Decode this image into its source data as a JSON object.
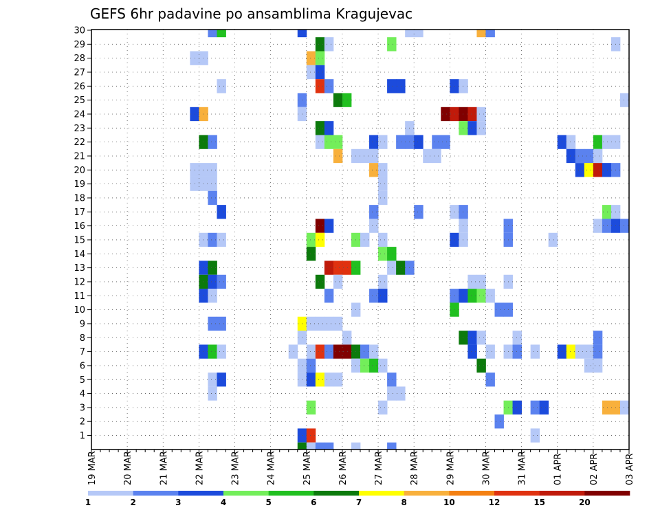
{
  "chart_data": {
    "type": "heatmap",
    "title": "GEFS 6hr padavine po ansamblima Kragujevac",
    "y_categories": [
      "1",
      "2",
      "3",
      "4",
      "5",
      "6",
      "7",
      "8",
      "9",
      "10",
      "11",
      "12",
      "13",
      "14",
      "15",
      "16",
      "17",
      "18",
      "19",
      "20",
      "21",
      "22",
      "23",
      "24",
      "25",
      "26",
      "27",
      "28",
      "29",
      "30"
    ],
    "x_tick_labels": [
      "19 MAR",
      "20 MAR",
      "21 MAR",
      "22 MAR",
      "23 MAR",
      "24 MAR",
      "25 MAR",
      "26 MAR",
      "27 MAR",
      "28 MAR",
      "29 MAR",
      "30 MAR",
      "31 MAR",
      "01 APR",
      "02 APR",
      "03 APR"
    ],
    "x_range": [
      0,
      60
    ],
    "x_unit": "6-hour steps since 19 MAR 00z",
    "grid": true,
    "colorbar": {
      "labels": [
        "1",
        "2",
        "3",
        "4",
        "5",
        "6",
        "7",
        "8",
        "10",
        "12",
        "15",
        "20"
      ],
      "colors": [
        "#b5c8f7",
        "#5b82ef",
        "#1c4bdc",
        "#73ee5a",
        "#21c020",
        "#0c7a0c",
        "#ffff00",
        "#f8b03c",
        "#f48012",
        "#e03210",
        "#c01a0a",
        "#800000"
      ]
    },
    "cells": [
      {
        "x": 13,
        "y": 30,
        "v": 2
      },
      {
        "x": 14,
        "y": 30,
        "v": 5
      },
      {
        "x": 23,
        "y": 30,
        "v": 3
      },
      {
        "x": 35,
        "y": 30,
        "v": 1
      },
      {
        "x": 36,
        "y": 30,
        "v": 1
      },
      {
        "x": 43,
        "y": 30,
        "v": 8
      },
      {
        "x": 44,
        "y": 30,
        "v": 2
      },
      {
        "x": 25,
        "y": 29,
        "v": 6
      },
      {
        "x": 26,
        "y": 29,
        "v": 1
      },
      {
        "x": 33,
        "y": 29,
        "v": 4
      },
      {
        "x": 58,
        "y": 29,
        "v": 1
      },
      {
        "x": 11,
        "y": 28,
        "v": 1
      },
      {
        "x": 12,
        "y": 28,
        "v": 1
      },
      {
        "x": 24,
        "y": 28,
        "v": 8
      },
      {
        "x": 25,
        "y": 28,
        "v": 4
      },
      {
        "x": 24,
        "y": 27,
        "v": 1
      },
      {
        "x": 25,
        "y": 27,
        "v": 3
      },
      {
        "x": 14,
        "y": 26,
        "v": 1
      },
      {
        "x": 25,
        "y": 26,
        "v": 12
      },
      {
        "x": 26,
        "y": 26,
        "v": 2
      },
      {
        "x": 33,
        "y": 26,
        "v": 3
      },
      {
        "x": 34,
        "y": 26,
        "v": 3
      },
      {
        "x": 40,
        "y": 26,
        "v": 3
      },
      {
        "x": 41,
        "y": 26,
        "v": 1
      },
      {
        "x": 23,
        "y": 25,
        "v": 2
      },
      {
        "x": 27,
        "y": 25,
        "v": 6
      },
      {
        "x": 28,
        "y": 25,
        "v": 5
      },
      {
        "x": 59,
        "y": 25,
        "v": 1
      },
      {
        "x": 11,
        "y": 24,
        "v": 3
      },
      {
        "x": 12,
        "y": 24,
        "v": 8
      },
      {
        "x": 23,
        "y": 24,
        "v": 1
      },
      {
        "x": 39,
        "y": 24,
        "v": 20
      },
      {
        "x": 40,
        "y": 24,
        "v": 15
      },
      {
        "x": 41,
        "y": 24,
        "v": 20
      },
      {
        "x": 42,
        "y": 24,
        "v": 15
      },
      {
        "x": 43,
        "y": 24,
        "v": 1
      },
      {
        "x": 25,
        "y": 23,
        "v": 6
      },
      {
        "x": 26,
        "y": 23,
        "v": 3
      },
      {
        "x": 35,
        "y": 23,
        "v": 1
      },
      {
        "x": 41,
        "y": 23,
        "v": 4
      },
      {
        "x": 42,
        "y": 23,
        "v": 3
      },
      {
        "x": 43,
        "y": 23,
        "v": 1
      },
      {
        "x": 12,
        "y": 22,
        "v": 6
      },
      {
        "x": 13,
        "y": 22,
        "v": 2
      },
      {
        "x": 25,
        "y": 22,
        "v": 1
      },
      {
        "x": 26,
        "y": 22,
        "v": 4
      },
      {
        "x": 27,
        "y": 22,
        "v": 4
      },
      {
        "x": 31,
        "y": 22,
        "v": 3
      },
      {
        "x": 32,
        "y": 22,
        "v": 1
      },
      {
        "x": 34,
        "y": 22,
        "v": 2
      },
      {
        "x": 35,
        "y": 22,
        "v": 2
      },
      {
        "x": 36,
        "y": 22,
        "v": 3
      },
      {
        "x": 38,
        "y": 22,
        "v": 2
      },
      {
        "x": 39,
        "y": 22,
        "v": 2
      },
      {
        "x": 52,
        "y": 22,
        "v": 3
      },
      {
        "x": 53,
        "y": 22,
        "v": 1
      },
      {
        "x": 56,
        "y": 22,
        "v": 5
      },
      {
        "x": 57,
        "y": 22,
        "v": 1
      },
      {
        "x": 58,
        "y": 22,
        "v": 1
      },
      {
        "x": 27,
        "y": 21,
        "v": 8
      },
      {
        "x": 29,
        "y": 21,
        "v": 1
      },
      {
        "x": 30,
        "y": 21,
        "v": 1
      },
      {
        "x": 31,
        "y": 21,
        "v": 1
      },
      {
        "x": 37,
        "y": 21,
        "v": 1
      },
      {
        "x": 38,
        "y": 21,
        "v": 1
      },
      {
        "x": 53,
        "y": 21,
        "v": 3
      },
      {
        "x": 54,
        "y": 21,
        "v": 2
      },
      {
        "x": 55,
        "y": 21,
        "v": 2
      },
      {
        "x": 56,
        "y": 21,
        "v": 1
      },
      {
        "x": 11,
        "y": 20,
        "v": 1
      },
      {
        "x": 12,
        "y": 20,
        "v": 1
      },
      {
        "x": 13,
        "y": 20,
        "v": 1
      },
      {
        "x": 31,
        "y": 20,
        "v": 8
      },
      {
        "x": 32,
        "y": 20,
        "v": 1
      },
      {
        "x": 54,
        "y": 20,
        "v": 3
      },
      {
        "x": 55,
        "y": 20,
        "v": 7
      },
      {
        "x": 56,
        "y": 20,
        "v": 15
      },
      {
        "x": 57,
        "y": 20,
        "v": 3
      },
      {
        "x": 58,
        "y": 20,
        "v": 2
      },
      {
        "x": 11,
        "y": 19,
        "v": 1
      },
      {
        "x": 12,
        "y": 19,
        "v": 1
      },
      {
        "x": 13,
        "y": 19,
        "v": 1
      },
      {
        "x": 32,
        "y": 19,
        "v": 1
      },
      {
        "x": 13,
        "y": 18,
        "v": 2
      },
      {
        "x": 32,
        "y": 18,
        "v": 1
      },
      {
        "x": 14,
        "y": 17,
        "v": 3
      },
      {
        "x": 31,
        "y": 17,
        "v": 2
      },
      {
        "x": 36,
        "y": 17,
        "v": 2
      },
      {
        "x": 40,
        "y": 17,
        "v": 1
      },
      {
        "x": 41,
        "y": 17,
        "v": 2
      },
      {
        "x": 57,
        "y": 17,
        "v": 4
      },
      {
        "x": 58,
        "y": 17,
        "v": 1
      },
      {
        "x": 25,
        "y": 16,
        "v": 20
      },
      {
        "x": 26,
        "y": 16,
        "v": 3
      },
      {
        "x": 31,
        "y": 16,
        "v": 1
      },
      {
        "x": 41,
        "y": 16,
        "v": 1
      },
      {
        "x": 46,
        "y": 16,
        "v": 2
      },
      {
        "x": 56,
        "y": 16,
        "v": 1
      },
      {
        "x": 57,
        "y": 16,
        "v": 2
      },
      {
        "x": 58,
        "y": 16,
        "v": 3
      },
      {
        "x": 59,
        "y": 16,
        "v": 2
      },
      {
        "x": 12,
        "y": 15,
        "v": 1
      },
      {
        "x": 13,
        "y": 15,
        "v": 2
      },
      {
        "x": 14,
        "y": 15,
        "v": 1
      },
      {
        "x": 24,
        "y": 15,
        "v": 4
      },
      {
        "x": 25,
        "y": 15,
        "v": 7
      },
      {
        "x": 29,
        "y": 15,
        "v": 4
      },
      {
        "x": 30,
        "y": 15,
        "v": 1
      },
      {
        "x": 32,
        "y": 15,
        "v": 1
      },
      {
        "x": 40,
        "y": 15,
        "v": 3
      },
      {
        "x": 41,
        "y": 15,
        "v": 1
      },
      {
        "x": 46,
        "y": 15,
        "v": 2
      },
      {
        "x": 51,
        "y": 15,
        "v": 1
      },
      {
        "x": 24,
        "y": 14,
        "v": 6
      },
      {
        "x": 32,
        "y": 14,
        "v": 4
      },
      {
        "x": 33,
        "y": 14,
        "v": 5
      },
      {
        "x": 12,
        "y": 13,
        "v": 3
      },
      {
        "x": 13,
        "y": 13,
        "v": 6
      },
      {
        "x": 26,
        "y": 13,
        "v": 15
      },
      {
        "x": 27,
        "y": 13,
        "v": 12
      },
      {
        "x": 28,
        "y": 13,
        "v": 12
      },
      {
        "x": 29,
        "y": 13,
        "v": 5
      },
      {
        "x": 33,
        "y": 13,
        "v": 1
      },
      {
        "x": 34,
        "y": 13,
        "v": 6
      },
      {
        "x": 35,
        "y": 13,
        "v": 2
      },
      {
        "x": 12,
        "y": 12,
        "v": 6
      },
      {
        "x": 13,
        "y": 12,
        "v": 3
      },
      {
        "x": 14,
        "y": 12,
        "v": 2
      },
      {
        "x": 25,
        "y": 12,
        "v": 6
      },
      {
        "x": 27,
        "y": 12,
        "v": 1
      },
      {
        "x": 32,
        "y": 12,
        "v": 1
      },
      {
        "x": 42,
        "y": 12,
        "v": 1
      },
      {
        "x": 43,
        "y": 12,
        "v": 1
      },
      {
        "x": 46,
        "y": 12,
        "v": 1
      },
      {
        "x": 12,
        "y": 11,
        "v": 3
      },
      {
        "x": 13,
        "y": 11,
        "v": 1
      },
      {
        "x": 26,
        "y": 11,
        "v": 2
      },
      {
        "x": 31,
        "y": 11,
        "v": 2
      },
      {
        "x": 32,
        "y": 11,
        "v": 3
      },
      {
        "x": 40,
        "y": 11,
        "v": 2
      },
      {
        "x": 41,
        "y": 11,
        "v": 3
      },
      {
        "x": 42,
        "y": 11,
        "v": 5
      },
      {
        "x": 43,
        "y": 11,
        "v": 4
      },
      {
        "x": 44,
        "y": 11,
        "v": 1
      },
      {
        "x": 29,
        "y": 10,
        "v": 1
      },
      {
        "x": 40,
        "y": 10,
        "v": 5
      },
      {
        "x": 45,
        "y": 10,
        "v": 2
      },
      {
        "x": 46,
        "y": 10,
        "v": 2
      },
      {
        "x": 13,
        "y": 9,
        "v": 2
      },
      {
        "x": 14,
        "y": 9,
        "v": 2
      },
      {
        "x": 23,
        "y": 9,
        "v": 7
      },
      {
        "x": 24,
        "y": 9,
        "v": 1
      },
      {
        "x": 25,
        "y": 9,
        "v": 1
      },
      {
        "x": 26,
        "y": 9,
        "v": 1
      },
      {
        "x": 27,
        "y": 9,
        "v": 1
      },
      {
        "x": 23,
        "y": 8,
        "v": 1
      },
      {
        "x": 28,
        "y": 8,
        "v": 1
      },
      {
        "x": 41,
        "y": 8,
        "v": 6
      },
      {
        "x": 42,
        "y": 8,
        "v": 3
      },
      {
        "x": 43,
        "y": 8,
        "v": 1
      },
      {
        "x": 47,
        "y": 8,
        "v": 1
      },
      {
        "x": 56,
        "y": 8,
        "v": 2
      },
      {
        "x": 12,
        "y": 7,
        "v": 3
      },
      {
        "x": 13,
        "y": 7,
        "v": 5
      },
      {
        "x": 14,
        "y": 7,
        "v": 1
      },
      {
        "x": 22,
        "y": 7,
        "v": 1
      },
      {
        "x": 24,
        "y": 7,
        "v": 1
      },
      {
        "x": 25,
        "y": 7,
        "v": 12
      },
      {
        "x": 26,
        "y": 7,
        "v": 2
      },
      {
        "x": 27,
        "y": 7,
        "v": 20
      },
      {
        "x": 28,
        "y": 7,
        "v": 20
      },
      {
        "x": 29,
        "y": 7,
        "v": 6
      },
      {
        "x": 30,
        "y": 7,
        "v": 2
      },
      {
        "x": 31,
        "y": 7,
        "v": 1
      },
      {
        "x": 42,
        "y": 7,
        "v": 3
      },
      {
        "x": 44,
        "y": 7,
        "v": 1
      },
      {
        "x": 46,
        "y": 7,
        "v": 1
      },
      {
        "x": 47,
        "y": 7,
        "v": 2
      },
      {
        "x": 49,
        "y": 7,
        "v": 1
      },
      {
        "x": 52,
        "y": 7,
        "v": 3
      },
      {
        "x": 53,
        "y": 7,
        "v": 7
      },
      {
        "x": 54,
        "y": 7,
        "v": 1
      },
      {
        "x": 55,
        "y": 7,
        "v": 1
      },
      {
        "x": 56,
        "y": 7,
        "v": 2
      },
      {
        "x": 23,
        "y": 6,
        "v": 1
      },
      {
        "x": 24,
        "y": 6,
        "v": 2
      },
      {
        "x": 29,
        "y": 6,
        "v": 1
      },
      {
        "x": 30,
        "y": 6,
        "v": 4
      },
      {
        "x": 31,
        "y": 6,
        "v": 5
      },
      {
        "x": 32,
        "y": 6,
        "v": 1
      },
      {
        "x": 43,
        "y": 6,
        "v": 6
      },
      {
        "x": 55,
        "y": 6,
        "v": 1
      },
      {
        "x": 56,
        "y": 6,
        "v": 1
      },
      {
        "x": 13,
        "y": 5,
        "v": 1
      },
      {
        "x": 14,
        "y": 5,
        "v": 3
      },
      {
        "x": 23,
        "y": 5,
        "v": 1
      },
      {
        "x": 24,
        "y": 5,
        "v": 3
      },
      {
        "x": 25,
        "y": 5,
        "v": 7
      },
      {
        "x": 26,
        "y": 5,
        "v": 1
      },
      {
        "x": 27,
        "y": 5,
        "v": 1
      },
      {
        "x": 33,
        "y": 5,
        "v": 2
      },
      {
        "x": 44,
        "y": 5,
        "v": 2
      },
      {
        "x": 13,
        "y": 4,
        "v": 1
      },
      {
        "x": 33,
        "y": 4,
        "v": 1
      },
      {
        "x": 34,
        "y": 4,
        "v": 1
      },
      {
        "x": 24,
        "y": 3,
        "v": 4
      },
      {
        "x": 32,
        "y": 3,
        "v": 1
      },
      {
        "x": 46,
        "y": 3,
        "v": 4
      },
      {
        "x": 47,
        "y": 3,
        "v": 3
      },
      {
        "x": 49,
        "y": 3,
        "v": 2
      },
      {
        "x": 50,
        "y": 3,
        "v": 3
      },
      {
        "x": 57,
        "y": 3,
        "v": 8
      },
      {
        "x": 58,
        "y": 3,
        "v": 8
      },
      {
        "x": 59,
        "y": 3,
        "v": 1
      },
      {
        "x": 45,
        "y": 2,
        "v": 2
      },
      {
        "x": 23,
        "y": 1,
        "v": 3
      },
      {
        "x": 24,
        "y": 1,
        "v": 12
      },
      {
        "x": 49,
        "y": 1,
        "v": 1
      },
      {
        "x": 23,
        "y": 0,
        "v": 6
      },
      {
        "x": 24,
        "y": 0,
        "v": 1
      },
      {
        "x": 25,
        "y": 0,
        "v": 2
      },
      {
        "x": 26,
        "y": 0,
        "v": 2
      },
      {
        "x": 29,
        "y": 0,
        "v": 1
      },
      {
        "x": 33,
        "y": 0,
        "v": 2
      }
    ]
  }
}
